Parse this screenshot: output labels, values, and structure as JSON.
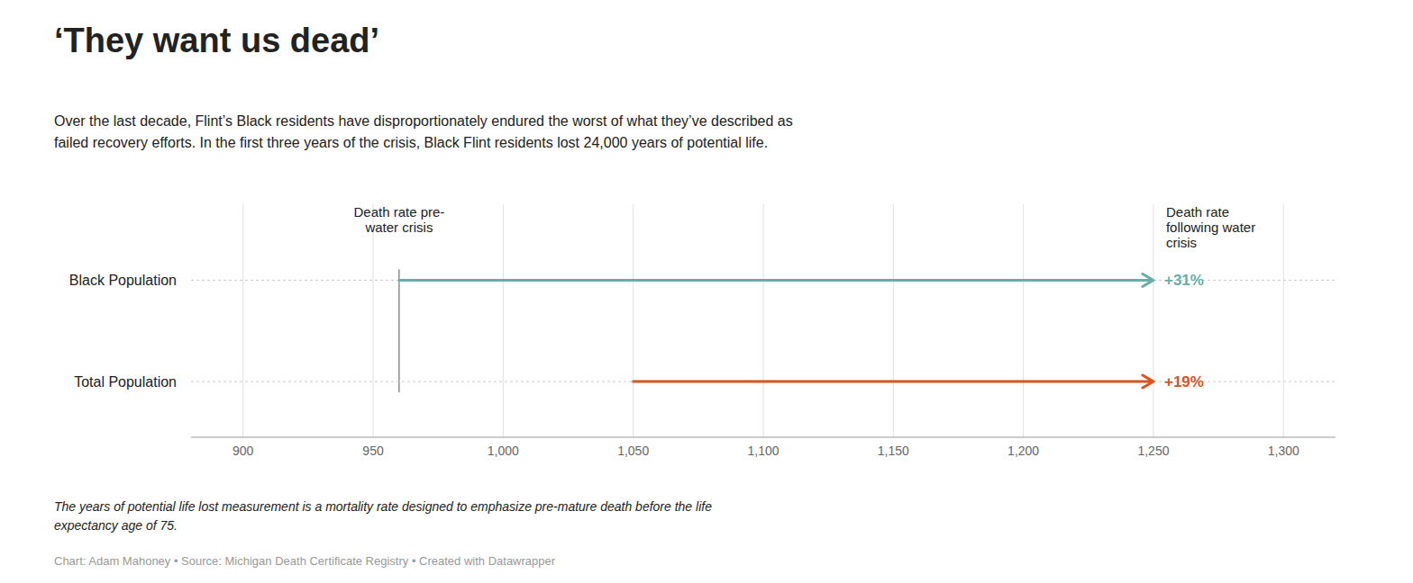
{
  "chart_data": {
    "type": "arrow",
    "title": "‘They want us dead’",
    "subtitle": "Over the last decade, Flint’s Black residents have disproportionately endured the worst of what they’ve described as\nfailed recovery efforts. In the first three years of the crisis, Black Flint residents lost 24,000 years of potential life.",
    "footnotes": [
      "The years of potential life lost measurement is a mortality rate designed to emphasize pre-mature death before the life\nexpectancy age of 75.",
      "Chart: Adam Mahoney • Source: Michigan Death Certificate Registry • Created with Datawrapper"
    ],
    "xlim": [
      880,
      1320
    ],
    "xticks": [
      900,
      950,
      {
        "value": 1000,
        "label": "1,000"
      },
      {
        "value": 1050,
        "label": "1,050"
      },
      {
        "value": 1100,
        "label": "1,100"
      },
      {
        "value": 1150,
        "label": "1,150"
      },
      {
        "value": 1200,
        "label": "1,200"
      },
      {
        "value": 1250,
        "label": "1,250"
      },
      {
        "value": 1300,
        "label": "1,300"
      }
    ],
    "grid": true,
    "series": [
      {
        "name": "Black Population",
        "color": "#6aada8",
        "values": [
          960,
          1250
        ],
        "change_label": "+31%"
      },
      {
        "name": "Total Population",
        "color": "#d9541e",
        "values": [
          1050,
          1250
        ],
        "change_label": "+19%"
      }
    ],
    "annotations": [
      {
        "text": "Death rate pre-\nwater crisis",
        "x": 960
      },
      {
        "text": "Death rate\nfollowing water\ncrisis",
        "x": 1250
      }
    ]
  }
}
